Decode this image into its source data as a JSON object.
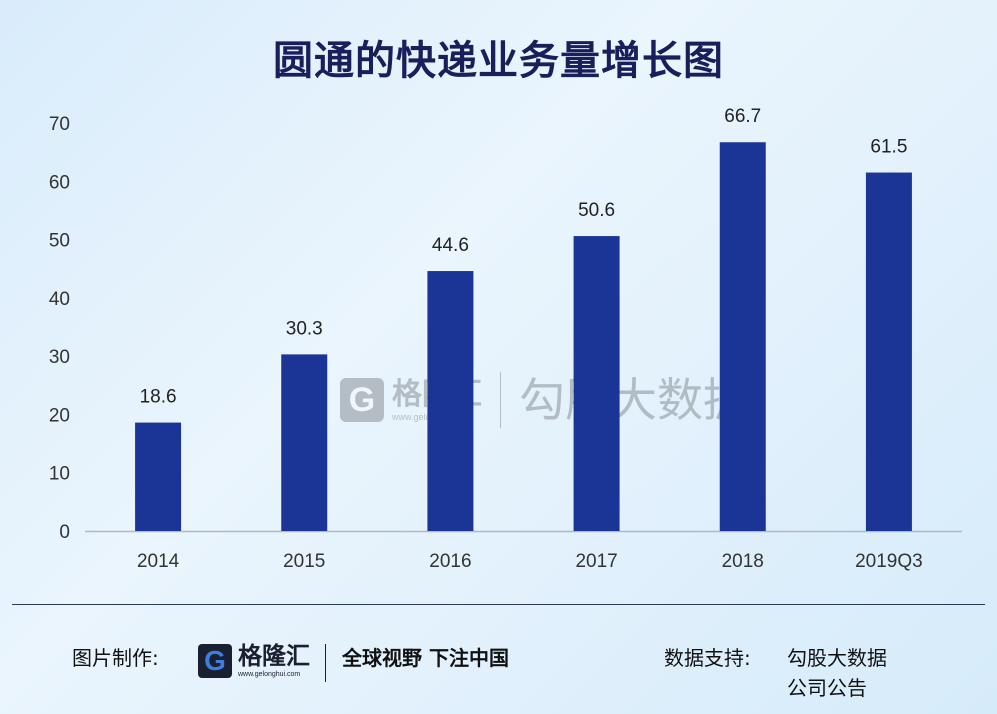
{
  "chart_data": {
    "type": "bar",
    "title": "圆通的快递业务量增长图",
    "categories": [
      "2014",
      "2015",
      "2016",
      "2017",
      "2018",
      "2019Q3"
    ],
    "values": [
      18.6,
      30.3,
      44.6,
      50.6,
      66.7,
      61.5
    ],
    "data_labels": [
      "18.6",
      "30.3",
      "44.6",
      "50.6",
      "66.7",
      "61.5"
    ],
    "yticks": [
      "0",
      "10",
      "20",
      "30",
      "40",
      "50",
      "60",
      "70"
    ],
    "ylim": [
      0,
      70
    ],
    "xlabel": "",
    "ylabel": "",
    "grid": false,
    "bar_color": "#1b3597"
  },
  "watermark": {
    "logo_letter": "G",
    "name": "格隆汇",
    "url": "www.gelonghui.com",
    "brand": "勾股大数据"
  },
  "footer": {
    "made_by_label": "图片制作:",
    "logo_letter": "G",
    "logo_name": "格隆汇",
    "logo_url": "www.gelonghui.com",
    "slogan": "全球视野 下注中国",
    "source_label": "数据支持:",
    "source_line1": "勾股大数据",
    "source_line2": "公司公告"
  }
}
